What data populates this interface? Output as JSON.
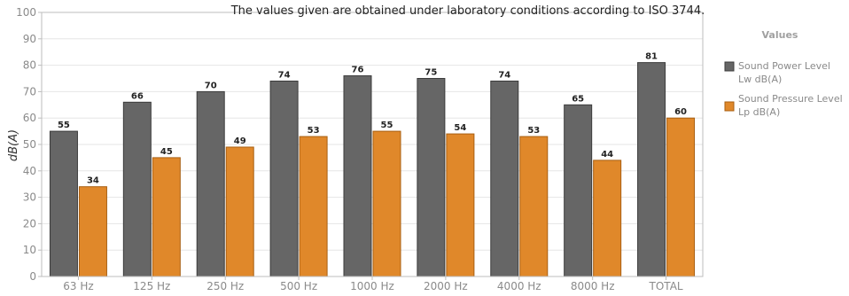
{
  "note": "The values given are obtained under laboratory conditions according to ISO 3744.",
  "legend": {
    "title": "Values",
    "position": "right",
    "items": [
      {
        "line1": "Sound Power Level",
        "line2": "Lw dB(A)"
      },
      {
        "line1": "Sound Pressure Level",
        "line2": "Lp dB(A)"
      }
    ]
  },
  "colors": {
    "series1": "#666666",
    "series1_stroke": "#3c3c3c",
    "series2": "#e0882a",
    "series2_stroke": "#a85f12",
    "grid": "#e6e6e6",
    "axis": "#bdbdbd"
  },
  "chart_data": {
    "type": "bar",
    "title": "",
    "xlabel": "",
    "ylabel": "dB(A)",
    "ylim": [
      0,
      100
    ],
    "yticks": [
      0,
      10,
      20,
      30,
      40,
      50,
      60,
      70,
      80,
      90,
      100
    ],
    "grid": true,
    "categories": [
      "63 Hz",
      "125 Hz",
      "250 Hz",
      "500 Hz",
      "1000 Hz",
      "2000 Hz",
      "4000 Hz",
      "8000 Hz",
      "TOTAL"
    ],
    "series": [
      {
        "name": "Sound Power Level Lw dB(A)",
        "values": [
          55,
          66,
          70,
          74,
          76,
          75,
          74,
          65,
          81
        ]
      },
      {
        "name": "Sound Pressure Level Lp dB(A)",
        "values": [
          34,
          45,
          49,
          53,
          55,
          54,
          53,
          44,
          60
        ]
      }
    ]
  }
}
